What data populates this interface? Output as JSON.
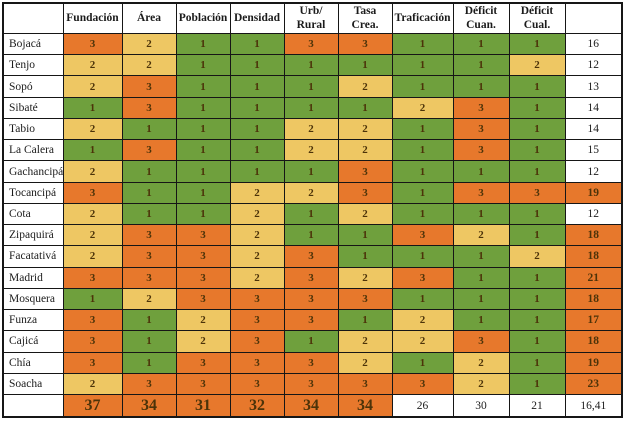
{
  "palette": {
    "score_1_green": "#6fa03d",
    "score_2_yellow": "#eec763",
    "score_3_orange": "#e7782c",
    "highlight_orange": "#e7782c",
    "white": "#ffffff",
    "border": "#161616",
    "number_text": "#4c3309",
    "label_text": "#1b1b1b"
  },
  "table": {
    "corner_label": "",
    "columns": [
      "Fundación",
      "Área",
      "Población",
      "Densidad",
      "Urb/\nRural",
      "Tasa\nCrea.",
      "Traficación",
      "Déficit\nCuan.",
      "Déficit\nCual.",
      ""
    ],
    "rows": [
      {
        "label": "Bojacá",
        "values": [
          3,
          2,
          1,
          1,
          3,
          3,
          1,
          1,
          1
        ],
        "total": "16",
        "total_color": "white"
      },
      {
        "label": "Tenjo",
        "values": [
          2,
          2,
          1,
          1,
          1,
          1,
          1,
          1,
          2
        ],
        "total": "12",
        "total_color": "white"
      },
      {
        "label": "Sopó",
        "values": [
          2,
          3,
          1,
          1,
          1,
          2,
          1,
          1,
          1
        ],
        "total": "13",
        "total_color": "white"
      },
      {
        "label": "Sibaté",
        "values": [
          1,
          3,
          1,
          1,
          1,
          1,
          2,
          3,
          1
        ],
        "total": "14",
        "total_color": "white"
      },
      {
        "label": "Tabio",
        "values": [
          2,
          1,
          1,
          1,
          2,
          2,
          1,
          3,
          1
        ],
        "total": "14",
        "total_color": "white"
      },
      {
        "label": "La Calera",
        "values": [
          1,
          3,
          1,
          1,
          2,
          2,
          1,
          3,
          1
        ],
        "total": "15",
        "total_color": "white"
      },
      {
        "label": "Gachancipá",
        "values": [
          2,
          1,
          1,
          1,
          1,
          3,
          1,
          1,
          1
        ],
        "total": "12",
        "total_color": "white"
      },
      {
        "label": "Tocancipá",
        "values": [
          3,
          1,
          1,
          2,
          2,
          3,
          1,
          3,
          3
        ],
        "total": "19",
        "total_color": "orange"
      },
      {
        "label": "Cota",
        "values": [
          2,
          1,
          1,
          2,
          1,
          2,
          1,
          1,
          1
        ],
        "total": "12",
        "total_color": "white"
      },
      {
        "label": "Zipaquirá",
        "values": [
          2,
          3,
          3,
          2,
          1,
          1,
          3,
          2,
          1
        ],
        "total": "18",
        "total_color": "orange"
      },
      {
        "label": "Facatativá",
        "values": [
          2,
          3,
          3,
          2,
          3,
          1,
          1,
          1,
          2
        ],
        "total": "18",
        "total_color": "orange"
      },
      {
        "label": "Madrid",
        "values": [
          3,
          3,
          3,
          2,
          3,
          2,
          3,
          1,
          1
        ],
        "total": "21",
        "total_color": "orange"
      },
      {
        "label": "Mosquera",
        "values": [
          1,
          2,
          3,
          3,
          3,
          3,
          1,
          1,
          1
        ],
        "total": "18",
        "total_color": "orange"
      },
      {
        "label": "Funza",
        "values": [
          3,
          1,
          2,
          3,
          3,
          1,
          2,
          1,
          1
        ],
        "total": "17",
        "total_color": "orange"
      },
      {
        "label": "Cajicá",
        "values": [
          3,
          1,
          2,
          3,
          1,
          2,
          2,
          3,
          1
        ],
        "total": "18",
        "total_color": "orange"
      },
      {
        "label": "Chía",
        "values": [
          3,
          1,
          3,
          3,
          3,
          2,
          1,
          2,
          1
        ],
        "total": "19",
        "total_color": "orange"
      },
      {
        "label": "Soacha",
        "values": [
          2,
          3,
          3,
          3,
          3,
          3,
          3,
          2,
          1
        ],
        "total": "23",
        "total_color": "orange"
      }
    ],
    "footer": {
      "label": "",
      "cells": [
        {
          "value": "37",
          "color": "orange"
        },
        {
          "value": "34",
          "color": "orange"
        },
        {
          "value": "31",
          "color": "orange"
        },
        {
          "value": "32",
          "color": "orange"
        },
        {
          "value": "34",
          "color": "orange"
        },
        {
          "value": "34",
          "color": "orange"
        },
        {
          "value": "26",
          "color": "white"
        },
        {
          "value": "30",
          "color": "white"
        },
        {
          "value": "21",
          "color": "white"
        }
      ],
      "grand_total": {
        "value": "16,41",
        "color": "white"
      }
    }
  }
}
